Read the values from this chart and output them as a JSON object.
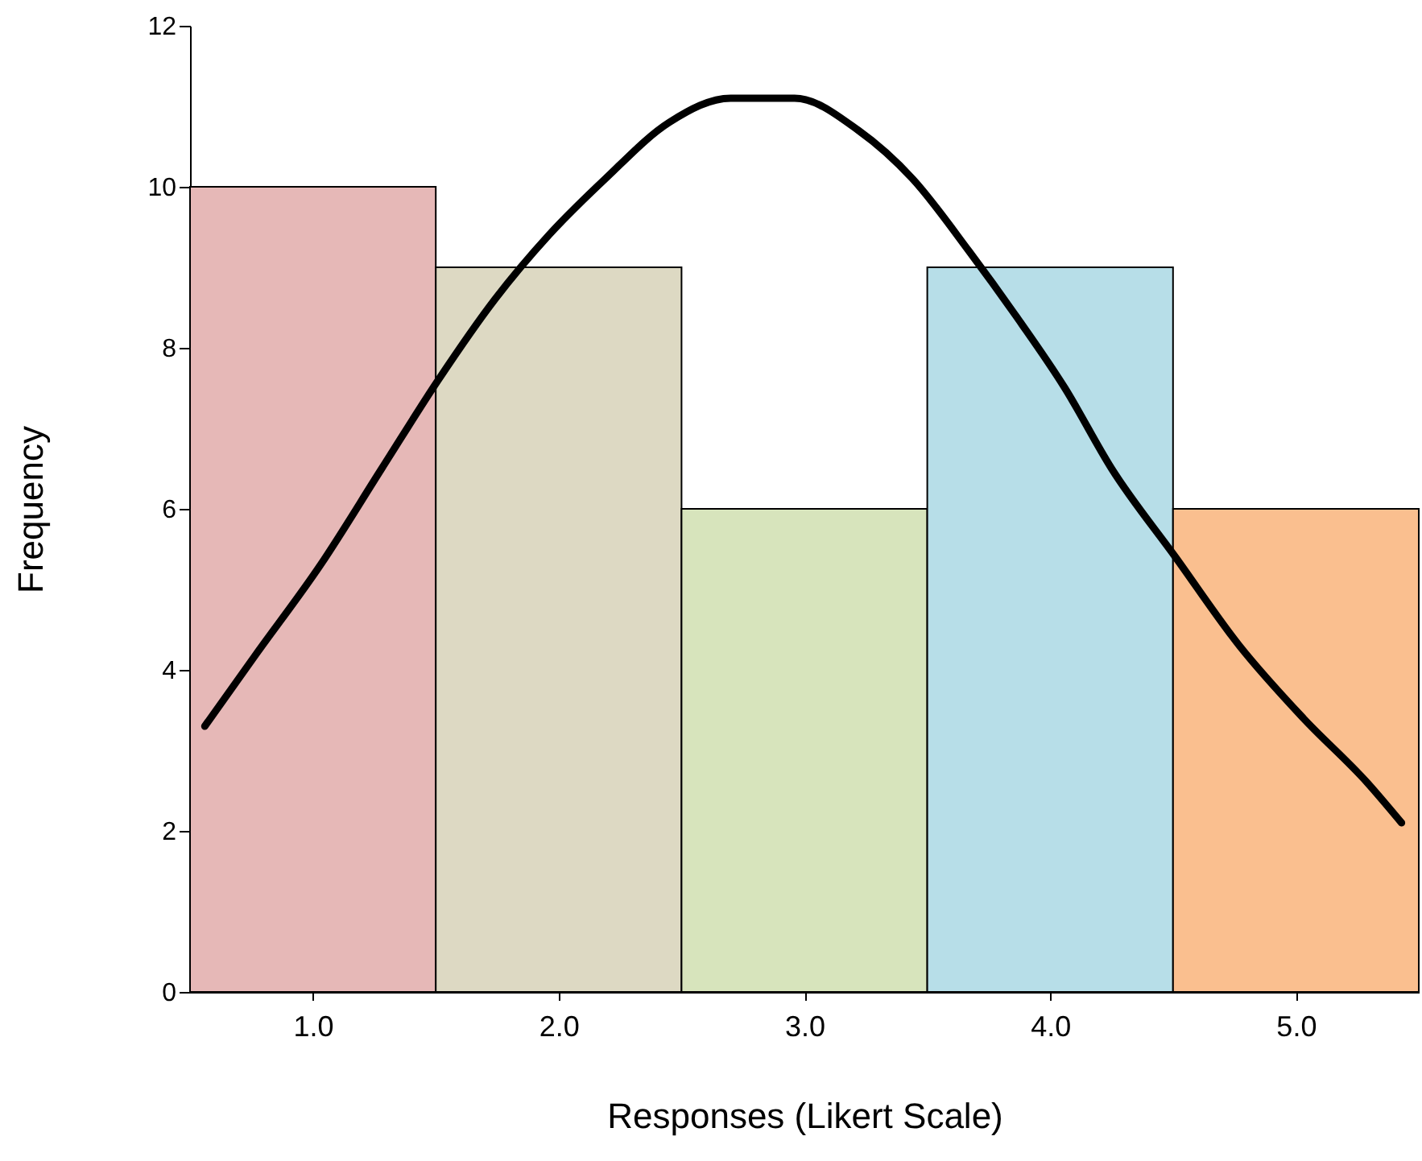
{
  "chart_data": {
    "type": "histogram",
    "xlabel": "Responses (Likert Scale)",
    "ylabel": "Frequency",
    "bins": [
      0.5,
      1.5,
      2.5,
      3.5,
      4.5,
      5.5
    ],
    "series": [
      {
        "values": [
          10,
          9,
          6,
          9,
          6
        ],
        "colors": [
          "#e6b8b7",
          "#ddd9c3",
          "#d7e4bc",
          "#b7dee8",
          "#fabf8f"
        ]
      },
      {
        "type": "line",
        "color": "#000000",
        "x": [
          0.56,
          0.77,
          1.03,
          1.28,
          1.51,
          1.74,
          1.96,
          2.19,
          2.45,
          2.7,
          2.96,
          3.22,
          3.44,
          3.67,
          3.86,
          4.06,
          4.25,
          4.51,
          4.77,
          5.03,
          5.29,
          5.43
        ],
        "values": [
          3.3,
          4.2,
          5.3,
          6.5,
          7.6,
          8.6,
          9.4,
          10.1,
          10.8,
          11.1,
          11.1,
          10.7,
          10.1,
          9.2,
          8.4,
          7.5,
          6.5,
          5.4,
          4.3,
          3.4,
          2.6,
          2.1
        ]
      }
    ],
    "xlim": [
      0.5,
      5.5
    ],
    "xticks": [
      {
        "value": 1,
        "label": "1.0"
      },
      {
        "value": 2,
        "label": "2.0"
      },
      {
        "value": 3,
        "label": "3.0"
      },
      {
        "value": 4,
        "label": "4.0"
      },
      {
        "value": 5,
        "label": "5.0"
      }
    ],
    "ylim": [
      0,
      12
    ],
    "yticks": [
      0,
      2,
      4,
      6,
      8,
      10,
      12
    ],
    "grid": false,
    "line_style": "solid",
    "marker": "none"
  }
}
